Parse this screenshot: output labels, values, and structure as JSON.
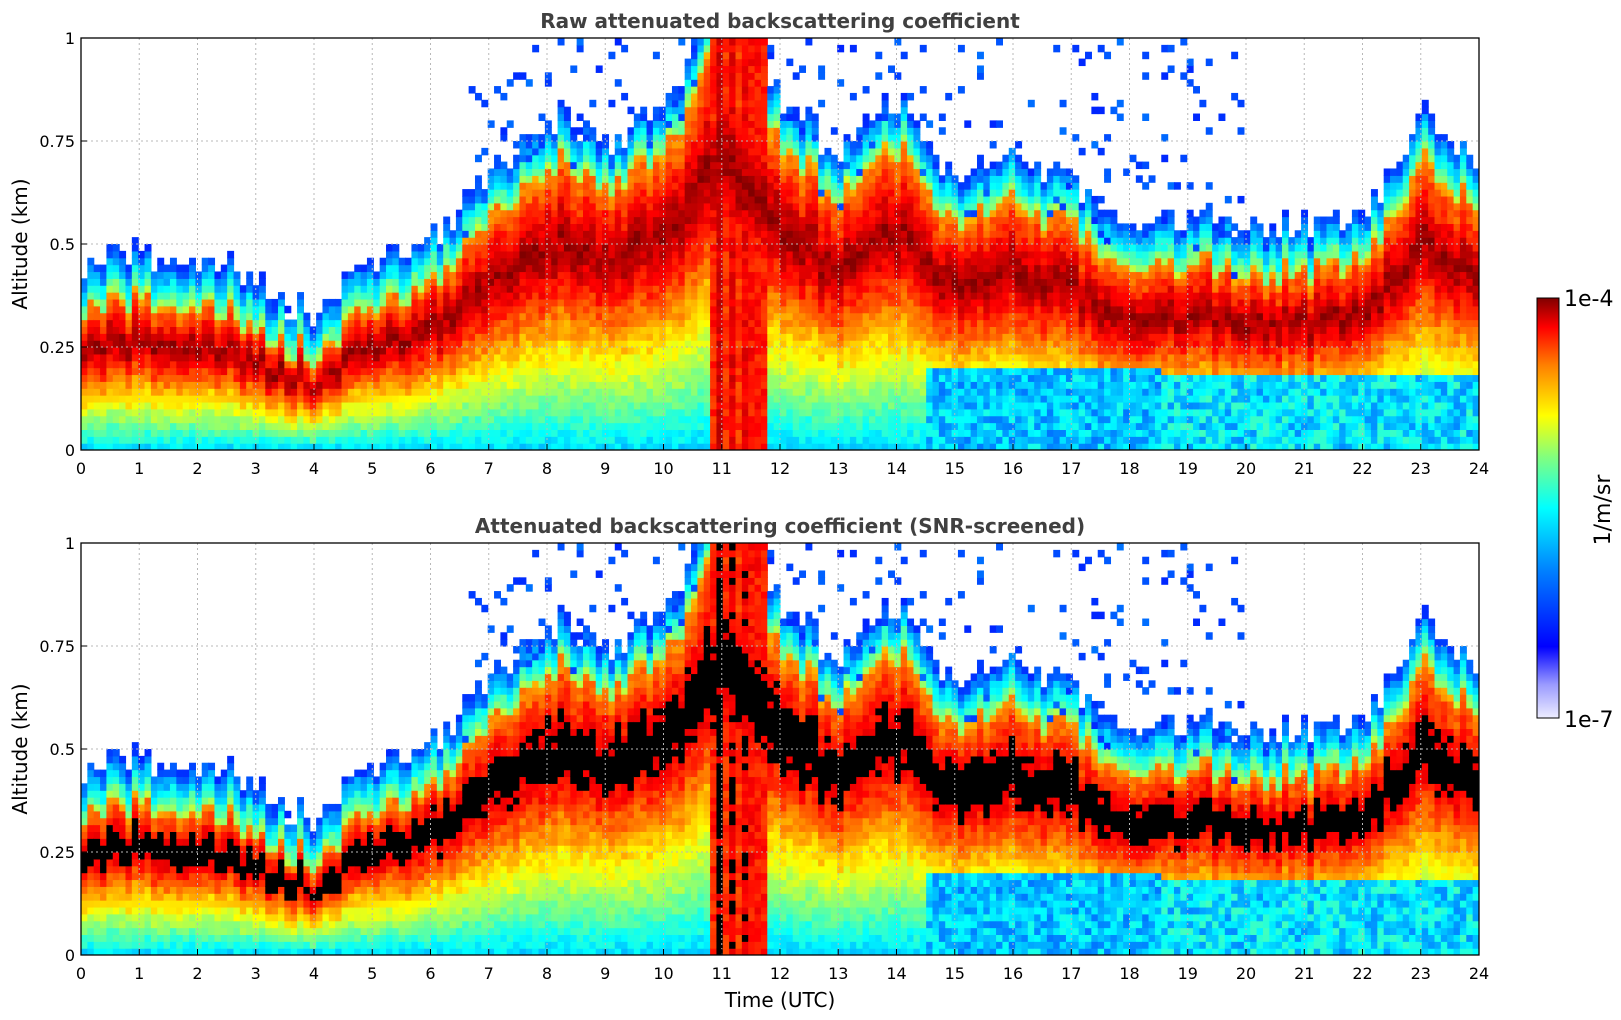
{
  "chart_data": [
    {
      "type": "heatmap",
      "id": "raw",
      "title": "Raw attenuated backscattering coefficient",
      "ylabel": "Altitude (km)",
      "xlabel": "",
      "xlim": [
        0,
        24
      ],
      "ylim": [
        0,
        1
      ],
      "xticks": [
        "0",
        "1",
        "2",
        "3",
        "4",
        "5",
        "6",
        "7",
        "8",
        "9",
        "10",
        "11",
        "12",
        "13",
        "14",
        "15",
        "16",
        "17",
        "18",
        "19",
        "20",
        "21",
        "22",
        "23",
        "24"
      ],
      "yticks": [
        "0",
        "0.25",
        "0.5",
        "0.75",
        "1"
      ],
      "grid": true,
      "screened": false,
      "boundary_layer_top_km": [
        [
          0,
          0.33
        ],
        [
          1,
          0.36
        ],
        [
          2,
          0.35
        ],
        [
          3,
          0.3
        ],
        [
          4,
          0.22
        ],
        [
          5,
          0.35
        ],
        [
          6,
          0.4
        ],
        [
          7,
          0.55
        ],
        [
          8,
          0.7
        ],
        [
          9,
          0.65
        ],
        [
          10,
          0.7
        ],
        [
          11,
          1.0
        ],
        [
          12,
          0.75
        ],
        [
          13,
          0.6
        ],
        [
          14,
          0.75
        ],
        [
          15,
          0.55
        ],
        [
          16,
          0.6
        ],
        [
          17,
          0.55
        ],
        [
          18,
          0.42
        ],
        [
          19,
          0.45
        ],
        [
          20,
          0.44
        ],
        [
          21,
          0.42
        ],
        [
          22,
          0.45
        ],
        [
          23,
          0.7
        ],
        [
          24,
          0.6
        ]
      ]
    },
    {
      "type": "heatmap",
      "id": "screened",
      "title": "Attenuated backscattering coefficient (SNR-screened)",
      "ylabel": "Altitude (km)",
      "xlabel": "Time (UTC)",
      "xlim": [
        0,
        24
      ],
      "ylim": [
        0,
        1
      ],
      "xticks": [
        "0",
        "1",
        "2",
        "3",
        "4",
        "5",
        "6",
        "7",
        "8",
        "9",
        "10",
        "11",
        "12",
        "13",
        "14",
        "15",
        "16",
        "17",
        "18",
        "19",
        "20",
        "21",
        "22",
        "23",
        "24"
      ],
      "yticks": [
        "0",
        "0.25",
        "0.5",
        "0.75",
        "1"
      ],
      "grid": true,
      "screened": true
    }
  ],
  "colorbar": {
    "label": "1/m/sr",
    "max_label": "1e-4",
    "min_label": "1e-7",
    "range": [
      1e-07,
      0.0001
    ],
    "scale": "log",
    "colormap": "jet",
    "colors": [
      "#e8e8ff",
      "#0000ff",
      "#00ffff",
      "#ffff00",
      "#ff0000",
      "#800000"
    ]
  }
}
